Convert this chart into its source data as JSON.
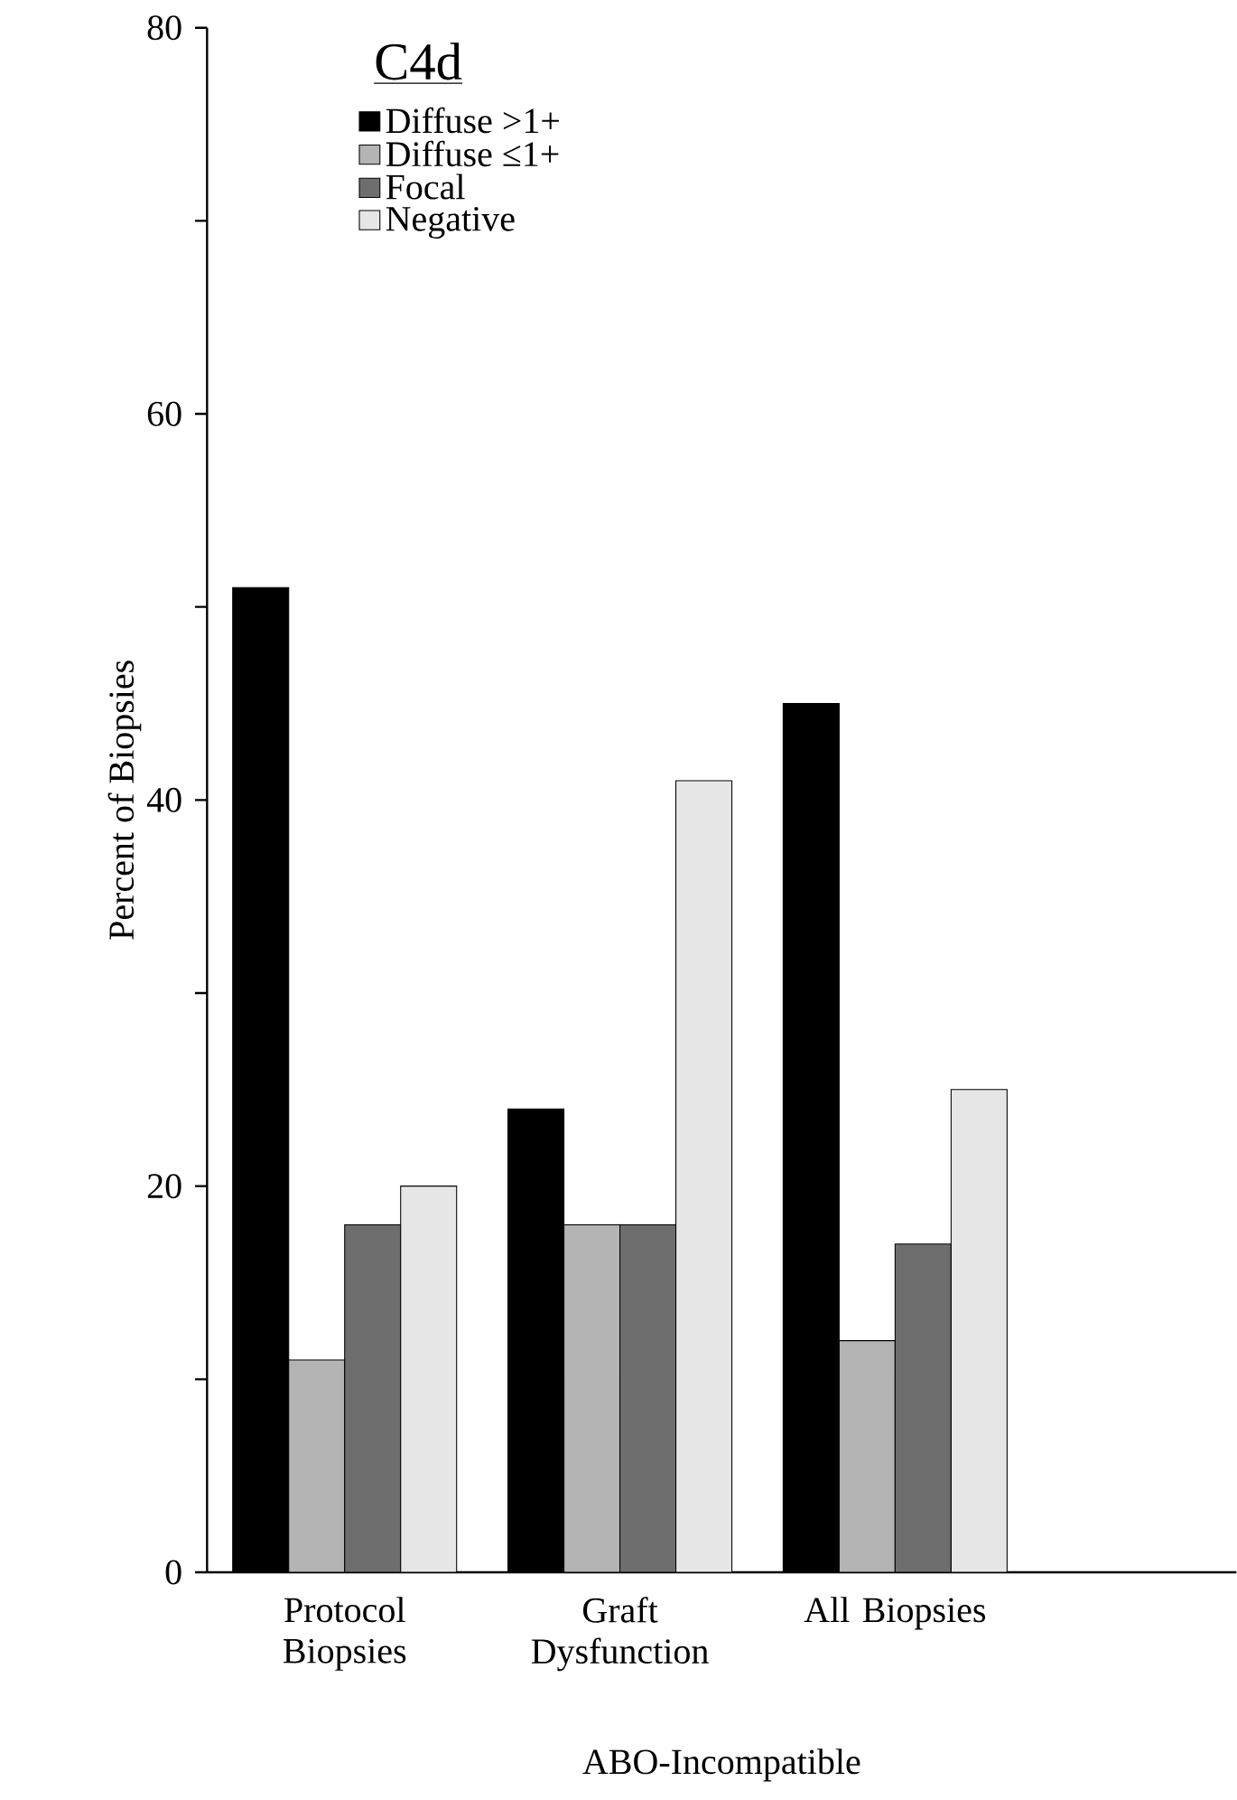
{
  "chart_data": {
    "type": "bar",
    "xlabel": "ABO-Incompatible",
    "ylabel": "Percent of Biopsies",
    "legend_title": "C4d",
    "categories": [
      "Protocol Biopsies",
      "Graft Dysfunction",
      "All Biopsies"
    ],
    "series": [
      {
        "name": "Diffuse >1+",
        "color": "#000000",
        "values": [
          51,
          24,
          45
        ]
      },
      {
        "name": "Diffuse ≤1+",
        "color": "#b4b4b4",
        "values": [
          11,
          18,
          12
        ]
      },
      {
        "name": "Focal",
        "color": "#6e6e6e",
        "values": [
          18,
          18,
          17
        ]
      },
      {
        "name": "Negative",
        "color": "#e6e6e6",
        "values": [
          20,
          41,
          25
        ]
      }
    ],
    "ylim": [
      0,
      80
    ],
    "yticks": [
      0,
      {
        "value": 10,
        "label": null
      },
      20,
      {
        "value": 30,
        "label": null
      },
      40,
      {
        "value": 50,
        "label": null
      },
      60,
      {
        "value": 70,
        "label": null
      },
      80
    ],
    "legend": "top left",
    "grid": false
  }
}
